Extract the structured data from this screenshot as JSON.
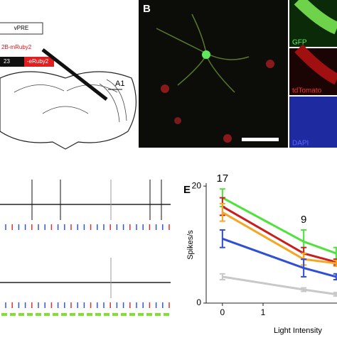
{
  "panel_a": {
    "construct_1": "vPRE",
    "construct_2": "2B-mRuby2",
    "box_black": "23",
    "box_red": "-eRuby2",
    "region": "A1"
  },
  "panel_b": {
    "label": "B",
    "channels": [
      "GFP",
      "tdTomato",
      "DAPI"
    ]
  },
  "chart_data": {
    "type": "line",
    "panel_label": "E",
    "ylabel": "Spikes/s",
    "xlabel": "Light Intensity",
    "x": [
      0,
      2,
      2.8
    ],
    "xlim": [
      -0.4,
      2.82
    ],
    "xticks": [
      0,
      1
    ],
    "ylim": [
      0,
      20.5
    ],
    "yticks": [
      0,
      20
    ],
    "annotations": [
      "17",
      "9"
    ],
    "series": [
      {
        "color": "#4ee23a",
        "values": [
          18,
          10.5,
          8.5
        ],
        "errors": [
          1.5,
          2,
          1
        ]
      },
      {
        "color": "#c81e1e",
        "values": [
          16.5,
          8.5,
          7
        ],
        "errors": [
          1.5,
          1,
          0.5
        ]
      },
      {
        "color": "#f5a623",
        "values": [
          15.5,
          7.5,
          6.8
        ],
        "errors": [
          1.5,
          1,
          0.5
        ]
      },
      {
        "color": "#2f4fd6",
        "values": [
          11,
          6,
          4.5
        ],
        "errors": [
          1.5,
          1.5,
          0.5
        ]
      },
      {
        "color": "#c8c8c8",
        "values": [
          4.5,
          2.3,
          1.5
        ],
        "errors": [
          0.5,
          0.3,
          0.3
        ]
      }
    ]
  }
}
